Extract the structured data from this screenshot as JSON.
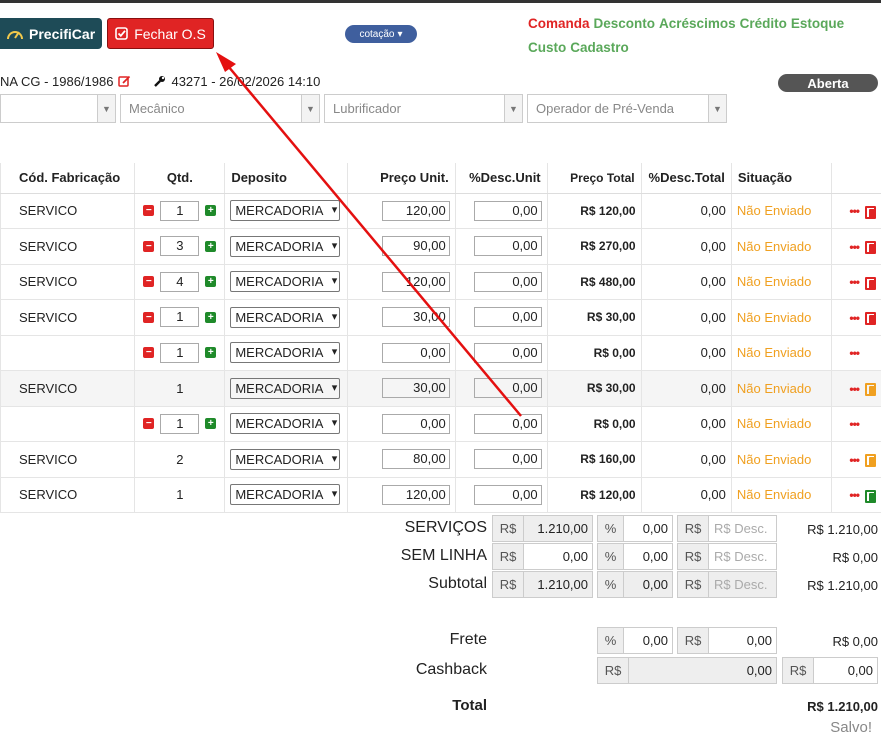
{
  "header": {
    "precificar_label": "PrecifiCar",
    "fechar_label": "Fechar O.S",
    "cotacao_label": "cotação",
    "menu": [
      {
        "label": "Comanda",
        "color": "#e02424"
      },
      {
        "label": "Desconto",
        "color": "#5aa85a"
      },
      {
        "label": "Acréscimos",
        "color": "#5aa85a"
      },
      {
        "label": "Crédito",
        "color": "#5aa85a"
      },
      {
        "label": "Estoque",
        "color": "#5aa85a"
      },
      {
        "label": "Custo",
        "color": "#5aa85a"
      },
      {
        "label": "Cadastro",
        "color": "#5aa85a"
      }
    ]
  },
  "vehicle": {
    "text": "NA CG - 1986/1986",
    "order_info": "43271 - 26/02/2026 14:10",
    "status": "Aberta"
  },
  "filters": {
    "mecanico": "Mecânico",
    "lubrificador": "Lubrificador",
    "operador": "Operador de Pré-Venda"
  },
  "table": {
    "headers": [
      "Cód. Fabricação",
      "Qtd.",
      "Deposito",
      "Preço Unit.",
      "%Desc.Unit",
      "Preço Total",
      "%Desc.Total",
      "Situação"
    ],
    "rows": [
      {
        "cod": "SERVICO",
        "qtd": "1",
        "editable": true,
        "dep": "MERCADORIA",
        "pu": "120,00",
        "dpu": "0,00",
        "pt": "R$ 120,00",
        "dpt": "0,00",
        "sit": "Não Enviado",
        "icon": "red"
      },
      {
        "cod": "SERVICO",
        "qtd": "3",
        "editable": true,
        "dep": "MERCADORIA",
        "pu": "90,00",
        "dpu": "0,00",
        "pt": "R$ 270,00",
        "dpt": "0,00",
        "sit": "Não Enviado",
        "icon": "red"
      },
      {
        "cod": "SERVICO",
        "qtd": "4",
        "editable": true,
        "dep": "MERCADORIA",
        "pu": "120,00",
        "dpu": "0,00",
        "pt": "R$ 480,00",
        "dpt": "0,00",
        "sit": "Não Enviado",
        "icon": "red"
      },
      {
        "cod": "SERVICO",
        "qtd": "1",
        "editable": true,
        "dep": "MERCADORIA",
        "pu": "30,00",
        "dpu": "0,00",
        "pt": "R$ 30,00",
        "dpt": "0,00",
        "sit": "Não Enviado",
        "icon": "red"
      },
      {
        "cod": "",
        "qtd": "1",
        "editable": true,
        "dep": "MERCADORIA",
        "pu": "0,00",
        "dpu": "0,00",
        "pt": "R$ 0,00",
        "dpt": "0,00",
        "sit": "Não Enviado",
        "icon": "none"
      },
      {
        "cod": "SERVICO",
        "qtd": "1",
        "editable": false,
        "dep": "MERCADORIA",
        "pu": "30,00",
        "dpu": "0,00",
        "pt": "R$ 30,00",
        "dpt": "0,00",
        "sit": "Não Enviado",
        "icon": "orange",
        "shaded": true
      },
      {
        "cod": "",
        "qtd": "1",
        "editable": true,
        "dep": "MERCADORIA",
        "pu": "0,00",
        "dpu": "0,00",
        "pt": "R$ 0,00",
        "dpt": "0,00",
        "sit": "Não Enviado",
        "icon": "none"
      },
      {
        "cod": "SERVICO",
        "qtd": "2",
        "editable": false,
        "dep": "MERCADORIA",
        "pu": "80,00",
        "dpu": "0,00",
        "pt": "R$ 160,00",
        "dpt": "0,00",
        "sit": "Não Enviado",
        "icon": "orange"
      },
      {
        "cod": "SERVICO",
        "qtd": "1",
        "editable": false,
        "dep": "MERCADORIA",
        "pu": "120,00",
        "dpu": "0,00",
        "pt": "R$ 120,00",
        "dpt": "0,00",
        "sit": "Não Enviado",
        "icon": "green"
      }
    ]
  },
  "totals": {
    "currency": "R$",
    "percent": "%",
    "desc_placeholder": "R$ Desc.",
    "servicos": {
      "label": "SERVIÇOS",
      "value": "1.210,00",
      "pct": "0,00",
      "total": "R$ 1.210,00"
    },
    "sem_linha": {
      "label": "SEM LINHA",
      "value": "0,00",
      "pct": "0,00",
      "total": "R$ 0,00"
    },
    "subtotal": {
      "label": "Subtotal",
      "value": "1.210,00",
      "pct": "0,00",
      "total": "R$ 1.210,00"
    },
    "frete": {
      "label": "Frete",
      "pct": "0,00",
      "value": "0,00",
      "total": "R$ 0,00"
    },
    "cashback": {
      "label": "Cashback",
      "value": "0,00",
      "extra": "0,00"
    },
    "total": {
      "label": "Total",
      "value": "R$ 1.210,00"
    },
    "saved": "Salvo!"
  }
}
